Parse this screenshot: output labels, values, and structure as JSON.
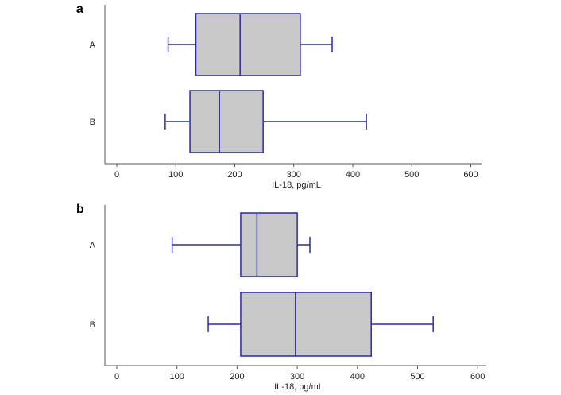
{
  "chart_data": [
    {
      "type": "box",
      "panel_label": "a",
      "xlabel": "IL-18, pg/mL",
      "xlim": [
        -20,
        620
      ],
      "xticks": [
        0,
        100,
        200,
        300,
        400,
        500,
        600
      ],
      "orientation": "horizontal",
      "box_fill": "#c8c8c8",
      "box_stroke": "#2a2aa8",
      "series": [
        {
          "category": "A",
          "whisker_low": 87,
          "q1": 134,
          "median": 209,
          "q3": 311,
          "whisker_high": 365
        },
        {
          "category": "B",
          "whisker_low": 82,
          "q1": 124,
          "median": 174,
          "q3": 248,
          "whisker_high": 423
        }
      ]
    },
    {
      "type": "box",
      "panel_label": "b",
      "xlabel": "IL-18, pg/mL",
      "xlim": [
        -20,
        620
      ],
      "xticks": [
        0,
        100,
        200,
        300,
        400,
        500,
        600
      ],
      "orientation": "horizontal",
      "box_fill": "#c8c8c8",
      "box_stroke": "#2a2aa8",
      "series": [
        {
          "category": "A",
          "whisker_low": 92,
          "q1": 206,
          "median": 233,
          "q3": 300,
          "whisker_high": 321
        },
        {
          "category": "B",
          "whisker_low": 152,
          "q1": 206,
          "median": 297,
          "q3": 423,
          "whisker_high": 526
        }
      ]
    }
  ]
}
